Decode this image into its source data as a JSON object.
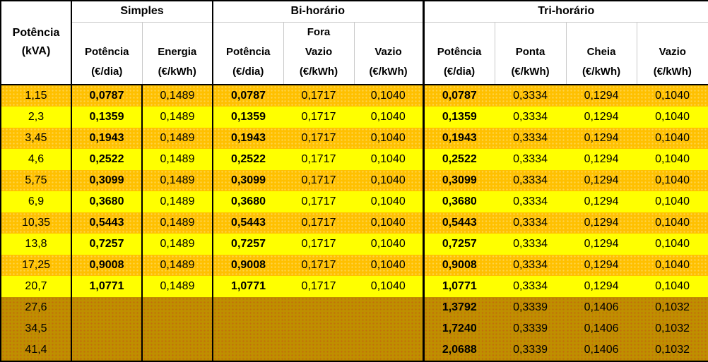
{
  "table": {
    "corner_label": "Potência\n(kVA)",
    "groups": [
      {
        "label": "Simples"
      },
      {
        "label": "Bi-horário"
      },
      {
        "label": "Tri-horário"
      }
    ],
    "sub_headers": [
      "Potência\n(€/dia)",
      "Energia\n(€/kWh)",
      "Potência\n(€/dia)",
      "Fora\nVazio\n(€/kWh)",
      "Vazio\n(€/kWh)",
      "Potência\n(€/dia)",
      "Ponta\n(€/kWh)",
      "Cheia\n(€/kWh)",
      "Vazio\n(€/kWh)"
    ],
    "column_names": [
      "potencia-kva",
      "simples-potencia-dia",
      "simples-energia-kwh",
      "bi-potencia-dia",
      "bi-fora-vazio-kwh",
      "bi-vazio-kwh",
      "tri-potencia-dia",
      "tri-ponta-kwh",
      "tri-cheia-kwh",
      "tri-vazio-kwh"
    ],
    "rows": [
      {
        "band": "orange",
        "cells": [
          "1,15",
          "0,0787",
          "0,1489",
          "0,0787",
          "0,1717",
          "0,1040",
          "0,0787",
          "0,3334",
          "0,1294",
          "0,1040"
        ]
      },
      {
        "band": "yellow",
        "cells": [
          "2,3",
          "0,1359",
          "0,1489",
          "0,1359",
          "0,1717",
          "0,1040",
          "0,1359",
          "0,3334",
          "0,1294",
          "0,1040"
        ]
      },
      {
        "band": "orange",
        "cells": [
          "3,45",
          "0,1943",
          "0,1489",
          "0,1943",
          "0,1717",
          "0,1040",
          "0,1943",
          "0,3334",
          "0,1294",
          "0,1040"
        ]
      },
      {
        "band": "yellow",
        "cells": [
          "4,6",
          "0,2522",
          "0,1489",
          "0,2522",
          "0,1717",
          "0,1040",
          "0,2522",
          "0,3334",
          "0,1294",
          "0,1040"
        ]
      },
      {
        "band": "orange",
        "cells": [
          "5,75",
          "0,3099",
          "0,1489",
          "0,3099",
          "0,1717",
          "0,1040",
          "0,3099",
          "0,3334",
          "0,1294",
          "0,1040"
        ]
      },
      {
        "band": "yellow",
        "cells": [
          "6,9",
          "0,3680",
          "0,1489",
          "0,3680",
          "0,1717",
          "0,1040",
          "0,3680",
          "0,3334",
          "0,1294",
          "0,1040"
        ]
      },
      {
        "band": "orange",
        "cells": [
          "10,35",
          "0,5443",
          "0,1489",
          "0,5443",
          "0,1717",
          "0,1040",
          "0,5443",
          "0,3334",
          "0,1294",
          "0,1040"
        ]
      },
      {
        "band": "yellow",
        "cells": [
          "13,8",
          "0,7257",
          "0,1489",
          "0,7257",
          "0,1717",
          "0,1040",
          "0,7257",
          "0,3334",
          "0,1294",
          "0,1040"
        ]
      },
      {
        "band": "orange",
        "cells": [
          "17,25",
          "0,9008",
          "0,1489",
          "0,9008",
          "0,1717",
          "0,1040",
          "0,9008",
          "0,3334",
          "0,1294",
          "0,1040"
        ]
      },
      {
        "band": "yellow",
        "cells": [
          "20,7",
          "1,0771",
          "0,1489",
          "1,0771",
          "0,1717",
          "0,1040",
          "1,0771",
          "0,3334",
          "0,1294",
          "0,1040"
        ]
      },
      {
        "band": "dark",
        "cells": [
          "27,6",
          "",
          "",
          "",
          "",
          "",
          "1,3792",
          "0,3339",
          "0,1406",
          "0,1032"
        ]
      },
      {
        "band": "dark",
        "cells": [
          "34,5",
          "",
          "",
          "",
          "",
          "",
          "1,7240",
          "0,3339",
          "0,1406",
          "0,1032"
        ]
      },
      {
        "band": "dark",
        "cells": [
          "41,4",
          "",
          "",
          "",
          "",
          "",
          "2,0688",
          "0,3339",
          "0,1406",
          "0,1032"
        ]
      }
    ],
    "colors": {
      "row_orange": "#FFC000",
      "row_yellow": "#FFFF00",
      "row_dark_gold": "#BF8F00",
      "header_background": "#FFFFFF",
      "border_black": "#000000",
      "header_divider_gray": "#C9C9C9",
      "text": "#000000"
    }
  }
}
